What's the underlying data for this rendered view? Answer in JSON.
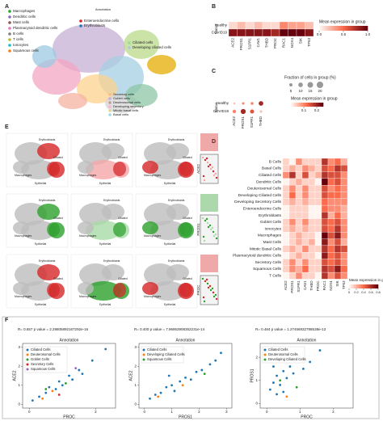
{
  "panel_labels": {
    "a": "A",
    "b": "B",
    "c": "C",
    "d": "D",
    "e": "E",
    "f": "F"
  },
  "umap": {
    "legend_left": [
      "Macrophages",
      "Dendritic cells",
      "Mast cells",
      "Plasmacytoid dendritic cells",
      "B cells",
      "T cells",
      "Ionocytes",
      "Squamous cells"
    ],
    "legend_mid": [
      "Enteroendocrine cells",
      "Erythroblasts"
    ],
    "legend_right": [
      "Ciliated cells",
      "Developing ciliated cells"
    ],
    "legend_bottom": [
      "Secretory cells",
      "Goblet cells",
      "Deuterosomal cells",
      "Developing secretory",
      "Mitotic basal cells",
      "Basal cells"
    ],
    "title": "Annotation"
  },
  "heatmap_b": {
    "row_title": "Status",
    "rows": [
      "Healthy",
      "COVID19"
    ],
    "cols": [
      "ACE2",
      "PROS1",
      "S1PR1",
      "CAV1",
      "THBD",
      "PROC",
      "RAC1",
      "NOX4",
      "SIK",
      "TP53"
    ],
    "values": [
      [
        0.1,
        0.2,
        0.1,
        0.2,
        0.1,
        0.1,
        0.4,
        0.3,
        0.3,
        0.2
      ],
      [
        0.9,
        0.9,
        0.9,
        0.9,
        0.9,
        0.8,
        1.0,
        1.0,
        1.0,
        0.9
      ]
    ],
    "vlim": [
      0,
      1
    ],
    "colorbar_title": "Mean expression in group",
    "ticks": [
      {
        "value": 0,
        "label": "0.0"
      },
      {
        "value": 0.5,
        "label": "0.5"
      },
      {
        "value": 1,
        "label": "1.0"
      }
    ]
  },
  "dotplot_c": {
    "row_title": "Status",
    "rows": [
      "Healthy",
      "COVID19"
    ],
    "cols": [
      "ACE2",
      "PROS1",
      "S1PR1",
      "THBD"
    ],
    "fraction": [
      [
        2,
        3,
        4,
        10
      ],
      [
        6,
        12,
        8,
        3
      ]
    ],
    "mean": [
      [
        0.05,
        0.1,
        0.1,
        0.2
      ],
      [
        0.1,
        0.2,
        0.15,
        0.05
      ]
    ],
    "size_title": "Fraction of cells in group (%)",
    "size_ticks": [
      5,
      10,
      15,
      20
    ],
    "color_title": "Mean expression in group",
    "color_ticks": [
      0.1,
      0.2
    ],
    "color_lim": [
      0,
      0.25
    ]
  },
  "panel_e": {
    "genes": [
      "ACE2",
      "PROS1",
      "PROC"
    ],
    "cluster_labels": [
      "Erythroblasts",
      "Ciliated",
      "Epithelial",
      "Macrophages"
    ]
  },
  "heatmap_d": {
    "rows": [
      "B Cells",
      "Basal Cells",
      "Ciliated Cells",
      "Dendritic Cells",
      "Deuterosomal Cells",
      "Developing Ciliated Cells",
      "Developing Secretory Cells",
      "Enteroendocrine Cells",
      "Erythroblasts",
      "Goblet Cells",
      "Ionocytes",
      "Macrophages",
      "Mast Cells",
      "Mitotic Basal Cells",
      "Plasmacytoid dendritic Cells",
      "Secretory Cells",
      "Squamous Cells",
      "T Cells"
    ],
    "cols": [
      "ACE2",
      "PROS1",
      "S1PR1",
      "CAV1",
      "THBD",
      "PROC",
      "RAC1",
      "NOX4",
      "SIK",
      "TP53"
    ],
    "values": [
      [
        0.1,
        0,
        0.3,
        0.1,
        0.1,
        0.1,
        0.6,
        0.3,
        0.4,
        0.2
      ],
      [
        0.1,
        0.2,
        0.1,
        0.3,
        0.2,
        0.1,
        0.5,
        0.4,
        0.6,
        0.5
      ],
      [
        0.3,
        0.6,
        0.1,
        0.5,
        0.1,
        0.2,
        0.6,
        0.5,
        0.5,
        0.3
      ],
      [
        0,
        0.1,
        0.2,
        0.1,
        0.1,
        0,
        0.8,
        0.4,
        0.5,
        0.3
      ],
      [
        0.1,
        0.3,
        0.1,
        0.3,
        0.1,
        0.1,
        0.5,
        0.3,
        0.4,
        0.3
      ],
      [
        0.1,
        0.4,
        0.1,
        0.3,
        0.1,
        0.1,
        0.5,
        0.4,
        0.4,
        0.3
      ],
      [
        0.1,
        0.2,
        0.1,
        0.2,
        0.1,
        0.1,
        0.4,
        0.3,
        0.3,
        0.3
      ],
      [
        0,
        0.1,
        0.1,
        0.1,
        0,
        0,
        0.4,
        0.3,
        0.3,
        0.2
      ],
      [
        0,
        0.1,
        0.1,
        0.1,
        0,
        0,
        0.6,
        0.2,
        0.4,
        0.2
      ],
      [
        0.1,
        0.3,
        0.1,
        0.3,
        0.1,
        0.1,
        0.5,
        0.4,
        0.5,
        0.3
      ],
      [
        0.1,
        0.2,
        0.1,
        0.2,
        0.1,
        0.1,
        0.5,
        0.4,
        0.6,
        0.3
      ],
      [
        0,
        0.1,
        0.2,
        0.1,
        0.1,
        0,
        0.8,
        0.5,
        0.7,
        0.3
      ],
      [
        0,
        0.1,
        0.2,
        0.1,
        0.2,
        0,
        0.7,
        0.3,
        0.5,
        0.2
      ],
      [
        0.1,
        0.2,
        0.1,
        0.3,
        0.1,
        0.1,
        0.6,
        0.4,
        0.6,
        0.5
      ],
      [
        0,
        0.1,
        0.2,
        0.1,
        0.1,
        0,
        0.7,
        0.4,
        0.5,
        0.3
      ],
      [
        0.1,
        0.3,
        0.1,
        0.3,
        0.1,
        0.1,
        0.5,
        0.4,
        0.5,
        0.3
      ],
      [
        0.1,
        0.3,
        0.2,
        0.4,
        0.1,
        0.1,
        0.6,
        0.5,
        0.7,
        0.4
      ],
      [
        0,
        0.1,
        0.3,
        0.1,
        0.1,
        0,
        0.6,
        0.3,
        0.5,
        0.3
      ]
    ],
    "vlim": [
      0,
      0.8
    ],
    "colorbar_title": "Mean expression in group",
    "ticks": [
      0,
      0.2,
      0.4,
      0.6,
      0.8
    ]
  },
  "scatter_f": [
    {
      "title": "R= 0.657 p value = 2.29805892167292e-16",
      "xlabel": "PROC",
      "ylabel": "ACE2",
      "legend_title": "Annotation",
      "xlim": [
        -0.2,
        2.6
      ],
      "ylim": [
        -0.2,
        3.2
      ],
      "xticks": [
        0,
        2
      ],
      "yticks": [
        0,
        1,
        2,
        3
      ],
      "groups": [
        {
          "name": "Ciliated Cells",
          "color": "#1f77b4",
          "x": [
            0.1,
            0.3,
            0.5,
            0.6,
            0.8,
            0.9,
            1.0,
            1.2,
            1.3,
            1.5,
            1.6,
            1.9,
            2.3
          ],
          "y": [
            0.2,
            0.4,
            0.6,
            0.9,
            0.8,
            1.2,
            1.0,
            1.5,
            1.3,
            1.8,
            1.6,
            2.3,
            2.9
          ]
        },
        {
          "name": "Deuterosomal Cells",
          "color": "#ff7f0e",
          "x": [
            0.4,
            0.7
          ],
          "y": [
            0.3,
            0.7
          ]
        },
        {
          "name": "Goblet Cells",
          "color": "#2ca02c",
          "x": [
            0.5,
            1.1
          ],
          "y": [
            0.8,
            1.1
          ]
        },
        {
          "name": "Secretory Cells",
          "color": "#d62728",
          "x": [
            0.9
          ],
          "y": [
            0.5
          ]
        },
        {
          "name": "Squamous Cells",
          "color": "#9467bd",
          "x": [
            1.4
          ],
          "y": [
            1.9
          ]
        }
      ]
    },
    {
      "title": "R= 0.400 p value = 7.96953908352231e-14",
      "xlabel": "PROS1",
      "ylabel": "ACE2",
      "legend_title": "Annotation",
      "xlim": [
        -0.2,
        3.2
      ],
      "ylim": [
        -0.2,
        3.2
      ],
      "xticks": [
        0,
        1,
        2,
        3
      ],
      "yticks": [
        0,
        1,
        2,
        3
      ],
      "groups": [
        {
          "name": "Ciliated Cells",
          "color": "#1f77b4",
          "x": [
            0.2,
            0.4,
            0.6,
            0.8,
            1.0,
            1.1,
            1.3,
            1.5,
            1.7,
            1.9,
            2.1,
            2.4,
            2.6,
            2.8,
            1.2,
            0.9
          ],
          "y": [
            0.3,
            0.5,
            0.6,
            0.9,
            1.0,
            0.7,
            1.2,
            1.4,
            1.3,
            1.7,
            1.8,
            2.1,
            2.3,
            2.7,
            2.9,
            1.5
          ]
        },
        {
          "name": "Developing Ciliated Cells",
          "color": "#ff7f0e",
          "x": [
            0.5,
            1.4
          ],
          "y": [
            0.4,
            1.0
          ]
        },
        {
          "name": "Squamous Cells",
          "color": "#2ca02c",
          "x": [
            2.2
          ],
          "y": [
            1.6
          ]
        }
      ]
    },
    {
      "title": "R= 0.484 p value = 1.27456932788538e-13",
      "xlabel": "PROC",
      "ylabel": "PROS1",
      "legend_title": "Annotation",
      "xlim": [
        -0.2,
        2.6
      ],
      "ylim": [
        -0.2,
        2.6
      ],
      "xticks": [
        0,
        1,
        2
      ],
      "yticks": [
        0,
        1,
        2
      ],
      "groups": [
        {
          "name": "Ciliated Cells",
          "color": "#1f77b4",
          "x": [
            0.1,
            0.2,
            0.3,
            0.4,
            0.5,
            0.6,
            0.7,
            0.8,
            0.9,
            1.1,
            1.3,
            1.6,
            0.3,
            0.5,
            0.2
          ],
          "y": [
            0.6,
            0.9,
            1.2,
            0.8,
            1.4,
            1.1,
            1.6,
            1.3,
            1.9,
            1.5,
            1.8,
            2.3,
            0.4,
            0.5,
            1.6
          ]
        },
        {
          "name": "Deuterosomal Cells",
          "color": "#ff7f0e",
          "x": [
            0.6
          ],
          "y": [
            0.3
          ]
        },
        {
          "name": "Developing Ciliated Cells",
          "color": "#2ca02c",
          "x": [
            0.4,
            0.9
          ],
          "y": [
            1.0,
            0.7
          ]
        }
      ]
    }
  ]
}
